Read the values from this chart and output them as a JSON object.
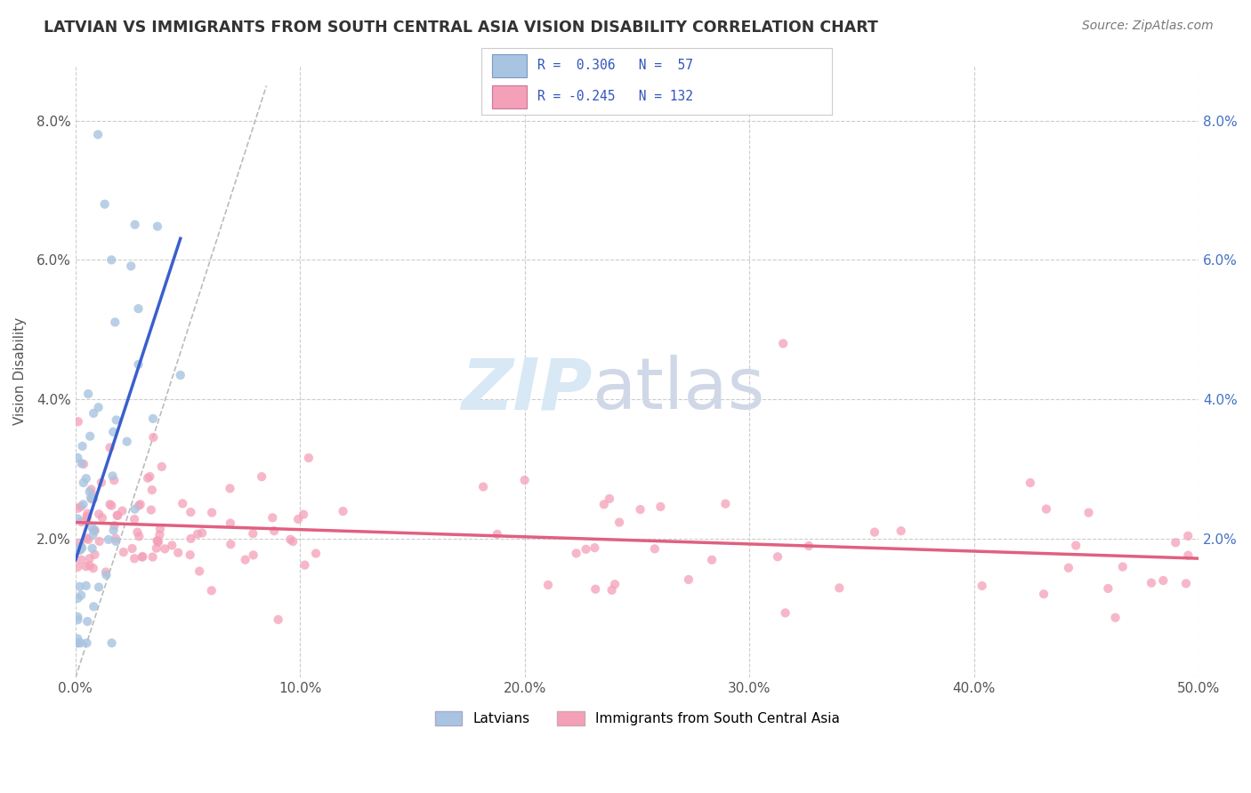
{
  "title": "LATVIAN VS IMMIGRANTS FROM SOUTH CENTRAL ASIA VISION DISABILITY CORRELATION CHART",
  "source": "Source: ZipAtlas.com",
  "ylabel": "Vision Disability",
  "xlim": [
    0.0,
    0.5
  ],
  "ylim": [
    0.0,
    0.088
  ],
  "xticks": [
    0.0,
    0.1,
    0.2,
    0.3,
    0.4,
    0.5
  ],
  "xtick_labels": [
    "0.0%",
    "10.0%",
    "20.0%",
    "30.0%",
    "40.0%",
    "50.0%"
  ],
  "yticks": [
    0.0,
    0.02,
    0.04,
    0.06,
    0.08
  ],
  "ytick_labels_left": [
    "",
    "2.0%",
    "4.0%",
    "6.0%",
    "8.0%"
  ],
  "ytick_labels_right": [
    "",
    "2.0%",
    "4.0%",
    "6.0%",
    "8.0%"
  ],
  "latvian_R": 0.306,
  "latvian_N": 57,
  "immigrant_R": -0.245,
  "immigrant_N": 132,
  "latvian_color": "#a8c4e0",
  "latvian_line_color": "#3a5fcd",
  "immigrant_color": "#f4a0b8",
  "immigrant_line_color": "#e06080",
  "diagonal_color": "#bbbbbb",
  "background_color": "#ffffff",
  "grid_color": "#cccccc",
  "legend_label_latvians": "Latvians",
  "legend_label_immigrants": "Immigrants from South Central Asia"
}
